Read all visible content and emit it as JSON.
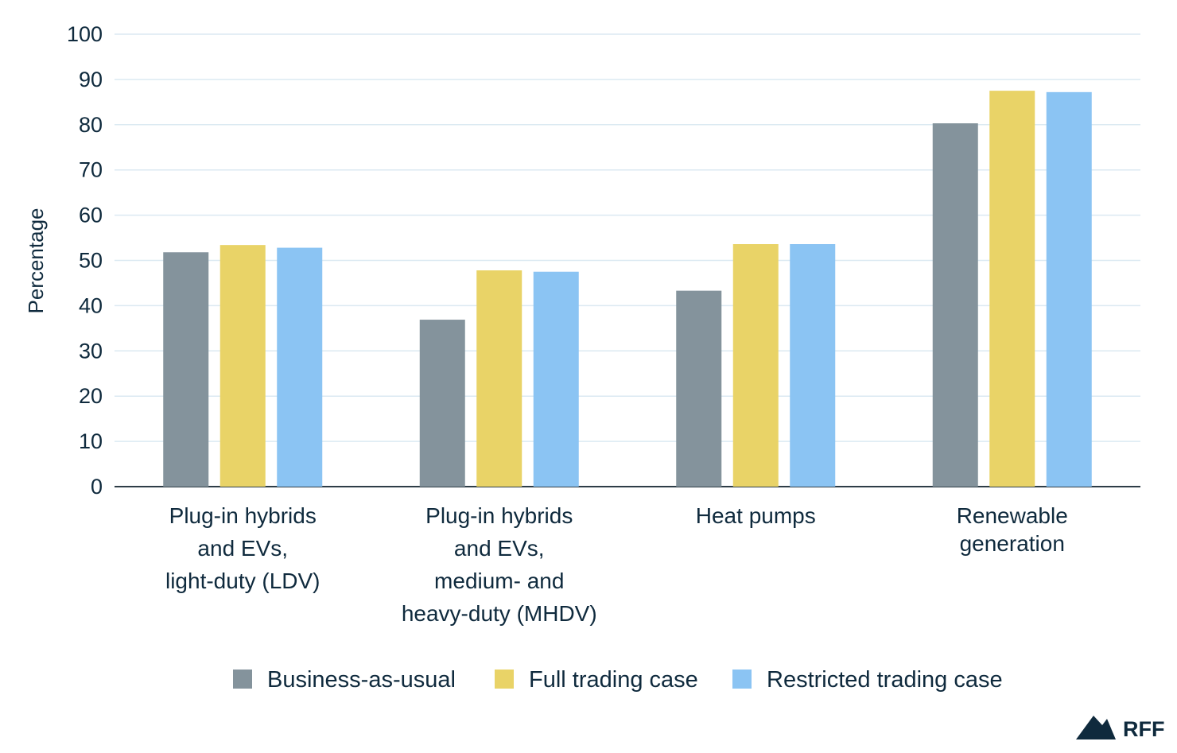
{
  "chart_data": {
    "type": "bar",
    "ylabel": "Percentage",
    "ylim": [
      0,
      100
    ],
    "yticks": [
      0,
      10,
      20,
      30,
      40,
      50,
      60,
      70,
      80,
      90,
      100
    ],
    "grid": true,
    "legend_position": "bottom",
    "categories": [
      [
        "Plug-in hybrids",
        "and EVs,",
        "light-duty (LDV)"
      ],
      [
        "Plug-in hybrids",
        "and EVs,",
        "medium- and",
        "heavy-duty (MHDV)"
      ],
      [
        "Heat pumps"
      ],
      [
        "Renewable",
        "generation"
      ]
    ],
    "series": [
      {
        "name": "Business-as-usual",
        "color": "#84939c",
        "values": [
          51.8,
          36.9,
          43.3,
          80.3
        ]
      },
      {
        "name": "Full trading case",
        "color": "#e9d367",
        "values": [
          53.4,
          47.8,
          53.6,
          87.5
        ]
      },
      {
        "name": "Restricted trading case",
        "color": "#8bc4f3",
        "values": [
          52.8,
          47.5,
          53.6,
          87.2
        ]
      }
    ]
  },
  "branding": {
    "logo_text": "RFF",
    "logo_icon": "mountain-icon",
    "color": "#0f2a3d"
  },
  "colors": {
    "gridline": "#dbe9f2",
    "baseline": "#2e3d47",
    "text": "#0f2a3d"
  }
}
